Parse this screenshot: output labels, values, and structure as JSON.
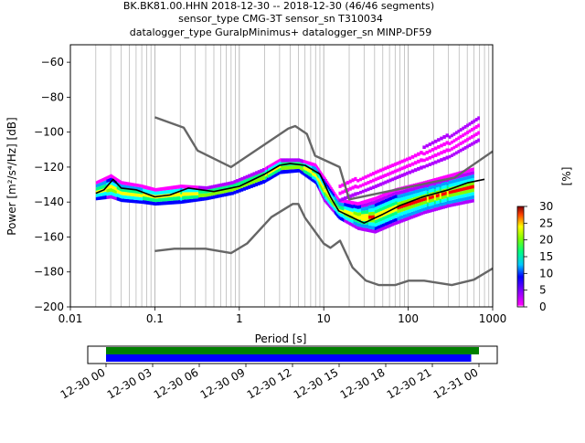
{
  "header": {
    "line1": "BK.BK81.00.HHN   2018-12-30 -- 2018-12-30  (46/46 segments)",
    "line2": "sensor_type CMG-3T sensor_sn T310034",
    "line3": "datalogger_type GuralpMinimus+ datalogger_sn MINP-DF59"
  },
  "chart_data": [
    {
      "type": "heatmap",
      "title": "BK.BK81.00.HHN   2018-12-30 -- 2018-12-30  (46/46 segments)",
      "xlabel": "Period [s]",
      "ylabel": "Power [m²/s⁴/Hz] [dB]",
      "xscale": "log",
      "xlim": [
        0.01,
        1000
      ],
      "ylim": [
        -200,
        -50
      ],
      "xticks": [
        0.01,
        0.1,
        1,
        10,
        100,
        1000
      ],
      "xtick_labels": [
        "0.01",
        "0.1",
        "1",
        "10",
        "100",
        "1000"
      ],
      "yticks": [
        -60,
        -80,
        -100,
        -120,
        -140,
        -160,
        -180,
        -200
      ],
      "ytick_labels": [
        "−60",
        "−80",
        "−100",
        "−120",
        "−140",
        "−160",
        "−180",
        "−200"
      ],
      "grid": "x-only",
      "colorbar": {
        "label": "[%]",
        "min": 0,
        "max": 30,
        "ticks": [
          0,
          5,
          10,
          15,
          20,
          25,
          30
        ],
        "colors": [
          "#ffffff",
          "#ff00ff",
          "#0000ff",
          "#00ffff",
          "#00ff00",
          "#ffff00",
          "#ff0000",
          "#800000"
        ]
      },
      "noise_models": [
        {
          "name": "NHNM",
          "color": "#666666",
          "points": [
            [
              0.1,
              -91.5
            ],
            [
              0.22,
              -97.4
            ],
            [
              0.32,
              -110.5
            ],
            [
              0.8,
              -120
            ],
            [
              3.8,
              -98
            ],
            [
              4.6,
              -96.5
            ],
            [
              6.3,
              -101
            ],
            [
              7.9,
              -113.5
            ],
            [
              15.4,
              -120
            ],
            [
              20,
              -138.5
            ],
            [
              354.8,
              -126
            ],
            [
              1000,
              -111
            ]
          ]
        },
        {
          "name": "NLNM",
          "color": "#666666",
          "points": [
            [
              0.1,
              -168
            ],
            [
              0.17,
              -166.7
            ],
            [
              0.4,
              -166.7
            ],
            [
              0.8,
              -169.2
            ],
            [
              1.24,
              -163.7
            ],
            [
              2.4,
              -148.6
            ],
            [
              4.3,
              -141.1
            ],
            [
              5,
              -141.1
            ],
            [
              6,
              -149
            ],
            [
              10,
              -163.8
            ],
            [
              12,
              -166.2
            ],
            [
              15.6,
              -162.1
            ],
            [
              21.9,
              -177.5
            ],
            [
              31.6,
              -185
            ],
            [
              45,
              -187.5
            ],
            [
              70,
              -187.5
            ],
            [
              101,
              -185
            ],
            [
              154.5,
              -185
            ],
            [
              328.4,
              -187.5
            ],
            [
              600,
              -184.4
            ],
            [
              1000,
              -178
            ]
          ]
        },
        {
          "name": "mode",
          "color": "#000000",
          "points": [
            [
              0.02,
              -135
            ],
            [
              0.025,
              -133
            ],
            [
              0.032,
              -127
            ],
            [
              0.04,
              -132
            ],
            [
              0.06,
              -133
            ],
            [
              0.1,
              -137
            ],
            [
              0.15,
              -136
            ],
            [
              0.25,
              -132
            ],
            [
              0.5,
              -134
            ],
            [
              1,
              -131
            ],
            [
              2,
              -124
            ],
            [
              3,
              -119
            ],
            [
              4,
              -118
            ],
            [
              6,
              -119
            ],
            [
              9,
              -124
            ],
            [
              12,
              -137
            ],
            [
              15,
              -145
            ],
            [
              20,
              -148
            ],
            [
              30,
              -152
            ],
            [
              50,
              -147
            ],
            [
              80,
              -142
            ],
            [
              150,
              -137
            ],
            [
              300,
              -133
            ],
            [
              500,
              -129
            ],
            [
              800,
              -127
            ]
          ]
        }
      ],
      "bands": [
        {
          "name": "main",
          "points": [
            [
              0.02,
              -128,
              -139
            ],
            [
              0.03,
              -124,
              -138
            ],
            [
              0.04,
              -128,
              -140
            ],
            [
              0.07,
              -130,
              -141
            ],
            [
              0.1,
              -132,
              -142
            ],
            [
              0.2,
              -130,
              -141
            ],
            [
              0.4,
              -131,
              -139
            ],
            [
              0.8,
              -128,
              -136
            ],
            [
              2,
              -120,
              -129
            ],
            [
              3,
              -115,
              -124
            ],
            [
              5,
              -115,
              -123
            ],
            [
              8,
              -118,
              -130
            ],
            [
              10,
              -125,
              -140
            ],
            [
              15,
              -138,
              -150
            ],
            [
              25,
              -140,
              -156
            ],
            [
              40,
              -137,
              -158
            ],
            [
              70,
              -132,
              -153
            ],
            [
              150,
              -128,
              -147
            ],
            [
              300,
              -124,
              -143
            ],
            [
              600,
              -120,
              -140
            ]
          ]
        },
        {
          "name": "upper-tail",
          "points": [
            [
              15,
              -130,
              -140
            ],
            [
              40,
              -120,
              -132
            ],
            [
              100,
              -112,
              -124
            ],
            [
              300,
              -100,
              -115
            ],
            [
              700,
              -88,
              -105
            ]
          ]
        }
      ]
    },
    {
      "type": "timeline",
      "xlim": [
        "2018-12-30 00:00",
        "2018-12-31 00:00"
      ],
      "tick_labels": [
        "12-30 00",
        "12-30 03",
        "12-30 06",
        "12-30 09",
        "12-30 12",
        "12-30 15",
        "12-30 18",
        "12-30 21",
        "12-31 00"
      ],
      "bars": [
        {
          "name": "data-coverage",
          "color": "#008000",
          "start_hours": 0,
          "end_hours": 24.0
        },
        {
          "name": "psd-coverage",
          "color": "#0000ff",
          "start_hours": 0,
          "end_hours": 23.5
        }
      ]
    }
  ]
}
